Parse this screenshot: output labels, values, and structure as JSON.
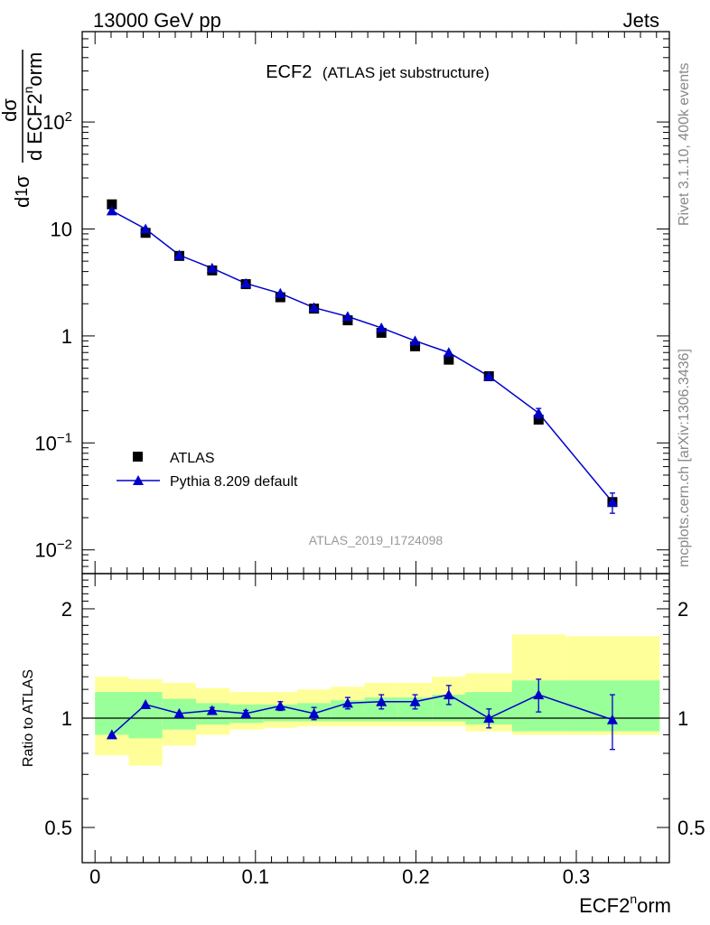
{
  "header": {
    "left": "13000 GeV pp",
    "right": "Jets"
  },
  "side": {
    "top": "Rivet 3.1.10,  400k events",
    "bottom": "mcplots.cern.ch [arXiv:1306.3436]"
  },
  "plot_title": {
    "main": "ECF2",
    "sub": "(ATLAS jet substructure)"
  },
  "analysis_ref": "ATLAS_2019_I1724098",
  "ylabel_top": "1/σ dσ/d ECF2norm",
  "ylabel_ratio": "Ratio to ATLAS",
  "xlabel": "ECF2norm",
  "legend": {
    "data_label": "ATLAS",
    "mc_label": "Pythia 8.209 default"
  },
  "colors": {
    "mc": "#0000cc",
    "data": "#000000",
    "band_inner": "#99ff99",
    "band_outer": "#ffff99"
  },
  "chart_data": [
    {
      "type": "scatter",
      "title": "ECF2 (ATLAS jet substructure)",
      "xlabel": "ECF2norm",
      "ylabel": "1/σ dσ/d ECF2norm",
      "yscale": "log",
      "xlim": [
        -0.008,
        0.358
      ],
      "ylim": [
        0.006,
        700
      ],
      "x_ticks": [
        "0",
        "0.1",
        "0.2",
        "0.3"
      ],
      "y_ticks": [
        "10^-2",
        "10^-1",
        "1",
        "10",
        "10^2"
      ],
      "legend_position": "bottom-left",
      "series": [
        {
          "name": "ATLAS",
          "x": [
            0.0105,
            0.0315,
            0.0525,
            0.073,
            0.094,
            0.1155,
            0.1365,
            0.1575,
            0.1785,
            0.1995,
            0.2205,
            0.2455,
            0.2765,
            0.3225
          ],
          "y": [
            17,
            9.2,
            5.6,
            4.1,
            3.05,
            2.3,
            1.8,
            1.4,
            1.07,
            0.8,
            0.6,
            0.42,
            0.165,
            0.028
          ]
        },
        {
          "name": "Pythia 8.209 default",
          "x": [
            0.0105,
            0.0315,
            0.0525,
            0.073,
            0.094,
            0.1155,
            0.1365,
            0.1575,
            0.1785,
            0.1995,
            0.2205,
            0.2455,
            0.2765,
            0.3225
          ],
          "y": [
            14.8,
            10.0,
            5.7,
            4.3,
            3.1,
            2.5,
            1.84,
            1.52,
            1.19,
            0.9,
            0.7,
            0.42,
            0.19,
            0.028
          ],
          "yerr": [
            0,
            0,
            0,
            0,
            0,
            0,
            0,
            0,
            0,
            0,
            0,
            0,
            0.02,
            0.006
          ]
        }
      ]
    },
    {
      "type": "scatter",
      "title": "",
      "xlabel": "ECF2norm",
      "ylabel": "Ratio to ATLAS",
      "yscale": "log",
      "xlim": [
        -0.008,
        0.358
      ],
      "ylim": [
        0.4,
        2.5
      ],
      "y_ticks": [
        "0.5",
        "1",
        "2"
      ],
      "bins": [
        {
          "lo": 0.0,
          "hi": 0.021,
          "inner": [
            0.9,
            1.18
          ],
          "outer": [
            0.79,
            1.3
          ]
        },
        {
          "lo": 0.021,
          "hi": 0.042,
          "inner": [
            0.88,
            1.18
          ],
          "outer": [
            0.74,
            1.28
          ]
        },
        {
          "lo": 0.042,
          "hi": 0.063,
          "inner": [
            0.93,
            1.13
          ],
          "outer": [
            0.84,
            1.25
          ]
        },
        {
          "lo": 0.063,
          "hi": 0.084,
          "inner": [
            0.96,
            1.1
          ],
          "outer": [
            0.9,
            1.21
          ]
        },
        {
          "lo": 0.084,
          "hi": 0.105,
          "inner": [
            0.97,
            1.09
          ],
          "outer": [
            0.93,
            1.18
          ]
        },
        {
          "lo": 0.105,
          "hi": 0.126,
          "inner": [
            0.98,
            1.09
          ],
          "outer": [
            0.94,
            1.18
          ]
        },
        {
          "lo": 0.126,
          "hi": 0.147,
          "inner": [
            0.98,
            1.1
          ],
          "outer": [
            0.95,
            1.2
          ]
        },
        {
          "lo": 0.147,
          "hi": 0.168,
          "inner": [
            0.98,
            1.12
          ],
          "outer": [
            0.95,
            1.22
          ]
        },
        {
          "lo": 0.168,
          "hi": 0.189,
          "inner": [
            0.98,
            1.14
          ],
          "outer": [
            0.95,
            1.25
          ]
        },
        {
          "lo": 0.189,
          "hi": 0.21,
          "inner": [
            0.98,
            1.14
          ],
          "outer": [
            0.95,
            1.25
          ]
        },
        {
          "lo": 0.21,
          "hi": 0.231,
          "inner": [
            0.98,
            1.16
          ],
          "outer": [
            0.95,
            1.3
          ]
        },
        {
          "lo": 0.231,
          "hi": 0.26,
          "inner": [
            0.96,
            1.18
          ],
          "outer": [
            0.92,
            1.33
          ]
        },
        {
          "lo": 0.26,
          "hi": 0.293,
          "inner": [
            0.92,
            1.27
          ],
          "outer": [
            0.9,
            1.7
          ]
        },
        {
          "lo": 0.293,
          "hi": 0.352,
          "inner": [
            0.92,
            1.27
          ],
          "outer": [
            0.9,
            1.68
          ]
        }
      ],
      "series": [
        {
          "name": "Pythia 8.209 default",
          "x": [
            0.0105,
            0.0315,
            0.0525,
            0.073,
            0.094,
            0.1155,
            0.1365,
            0.1575,
            0.1785,
            0.1995,
            0.2205,
            0.2455,
            0.2765,
            0.3225
          ],
          "y": [
            0.9,
            1.09,
            1.03,
            1.05,
            1.03,
            1.08,
            1.03,
            1.1,
            1.11,
            1.11,
            1.16,
            1.0,
            1.16,
            0.99
          ],
          "yerr": [
            0,
            0,
            0,
            0.02,
            0.02,
            0.03,
            0.04,
            0.04,
            0.05,
            0.05,
            0.07,
            0.06,
            0.12,
            0.17
          ]
        }
      ]
    }
  ]
}
